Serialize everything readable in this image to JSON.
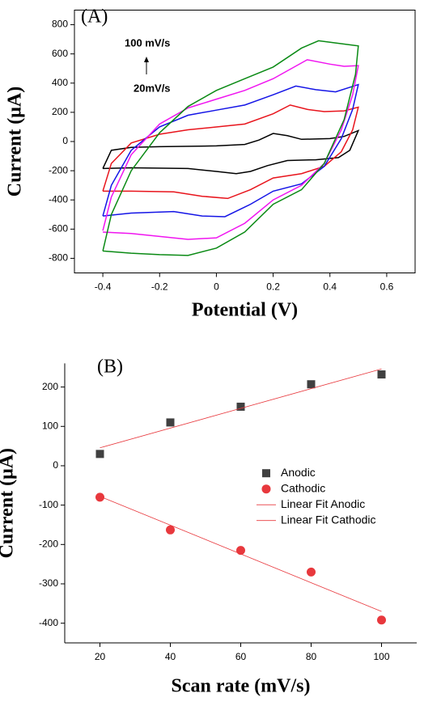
{
  "chart_data": [
    {
      "type": "line",
      "title": "(A)",
      "xlabel": "Potential (V)",
      "ylabel": "Current (μA)",
      "xlim": [
        -0.5,
        0.7
      ],
      "xticks": [
        -0.4,
        -0.2,
        0,
        0.2,
        0.4,
        0.6
      ],
      "ylim": [
        -900,
        900
      ],
      "yticks": [
        -800,
        -600,
        -400,
        -200,
        0,
        200,
        400,
        600,
        800
      ],
      "grid": false,
      "annotations": [
        "100 mV/s",
        "20mV/s"
      ],
      "series": [
        {
          "color": "#000000",
          "x": [
            -0.4,
            -0.37,
            -0.3,
            -0.2,
            0,
            0.1,
            0.15,
            0.2,
            0.25,
            0.3,
            0.4,
            0.45,
            0.5,
            0.47,
            0.43,
            0.35,
            0.25,
            0.18,
            0.12,
            0.07,
            0,
            -0.1,
            -0.3,
            -0.4
          ],
          "values": [
            -185,
            -60,
            -40,
            -35,
            -30,
            -20,
            10,
            55,
            40,
            15,
            20,
            35,
            75,
            -60,
            -110,
            -125,
            -130,
            -165,
            -205,
            -220,
            -205,
            -185,
            -180,
            -185
          ]
        },
        {
          "color": "#e8141c",
          "x": [
            -0.4,
            -0.37,
            -0.3,
            -0.2,
            -0.1,
            0,
            0.1,
            0.2,
            0.26,
            0.32,
            0.38,
            0.45,
            0.5,
            0.48,
            0.44,
            0.38,
            0.3,
            0.2,
            0.12,
            0.04,
            -0.05,
            -0.15,
            -0.3,
            -0.4
          ],
          "values": [
            -340,
            -150,
            -10,
            50,
            80,
            100,
            120,
            190,
            250,
            220,
            205,
            210,
            235,
            80,
            -70,
            -170,
            -220,
            -250,
            -330,
            -390,
            -375,
            -345,
            -340,
            -340
          ]
        },
        {
          "color": "#1414e6",
          "x": [
            -0.4,
            -0.37,
            -0.3,
            -0.2,
            -0.1,
            0,
            0.1,
            0.2,
            0.28,
            0.35,
            0.42,
            0.5,
            0.48,
            0.44,
            0.38,
            0.3,
            0.2,
            0.12,
            0.03,
            -0.05,
            -0.15,
            -0.3,
            -0.4
          ],
          "values": [
            -510,
            -300,
            -60,
            100,
            180,
            215,
            250,
            320,
            380,
            355,
            340,
            390,
            220,
            20,
            -170,
            -290,
            -340,
            -430,
            -515,
            -510,
            -480,
            -490,
            -510
          ]
        },
        {
          "color": "#f014f0",
          "x": [
            -0.4,
            -0.37,
            -0.3,
            -0.2,
            -0.1,
            0,
            0.1,
            0.2,
            0.32,
            0.4,
            0.45,
            0.5,
            0.48,
            0.44,
            0.38,
            0.3,
            0.2,
            0.1,
            0,
            -0.1,
            -0.2,
            -0.3,
            -0.4
          ],
          "values": [
            -610,
            -380,
            -90,
            120,
            230,
            290,
            350,
            430,
            560,
            530,
            515,
            520,
            320,
            80,
            -150,
            -300,
            -400,
            -560,
            -660,
            -670,
            -650,
            -630,
            -620
          ]
        },
        {
          "color": "#0a8a14",
          "x": [
            -0.4,
            -0.37,
            -0.3,
            -0.2,
            -0.1,
            0,
            0.1,
            0.2,
            0.3,
            0.36,
            0.42,
            0.5,
            0.49,
            0.45,
            0.38,
            0.3,
            0.2,
            0.1,
            0,
            -0.1,
            -0.2,
            -0.3,
            -0.4
          ],
          "values": [
            -750,
            -500,
            -200,
            60,
            240,
            350,
            430,
            510,
            640,
            690,
            675,
            655,
            460,
            150,
            -150,
            -330,
            -430,
            -620,
            -730,
            -780,
            -775,
            -765,
            -750
          ]
        }
      ]
    },
    {
      "type": "scatter",
      "title": "(B)",
      "xlabel": "Scan rate (mV/s)",
      "ylabel": "Current (μA)",
      "xlim": [
        10,
        110
      ],
      "xticks": [
        20,
        40,
        60,
        80,
        100
      ],
      "ylim": [
        -450,
        260
      ],
      "yticks": [
        -400,
        -300,
        -200,
        -100,
        0,
        100,
        200
      ],
      "grid": false,
      "legend": "center-right",
      "series": [
        {
          "name": "Anodic",
          "kind": "scatter",
          "marker": "square",
          "color": "#404040",
          "x": [
            20,
            40,
            60,
            80,
            100
          ],
          "values": [
            30,
            110,
            150,
            207,
            232
          ]
        },
        {
          "name": "Cathodic",
          "kind": "scatter",
          "marker": "circle",
          "color": "#e8383d",
          "x": [
            20,
            40,
            60,
            80,
            100
          ],
          "values": [
            -80,
            -163,
            -215,
            -270,
            -392
          ]
        },
        {
          "name": "Linear Fit Anodic",
          "kind": "line",
          "color": "#e8383d",
          "x": [
            20,
            100
          ],
          "values": [
            45.6,
            246
          ]
        },
        {
          "name": "Linear Fit Cathodic",
          "kind": "line",
          "color": "#e8383d",
          "x": [
            20,
            100
          ],
          "values": [
            -77.8,
            -370.2
          ]
        }
      ]
    }
  ]
}
